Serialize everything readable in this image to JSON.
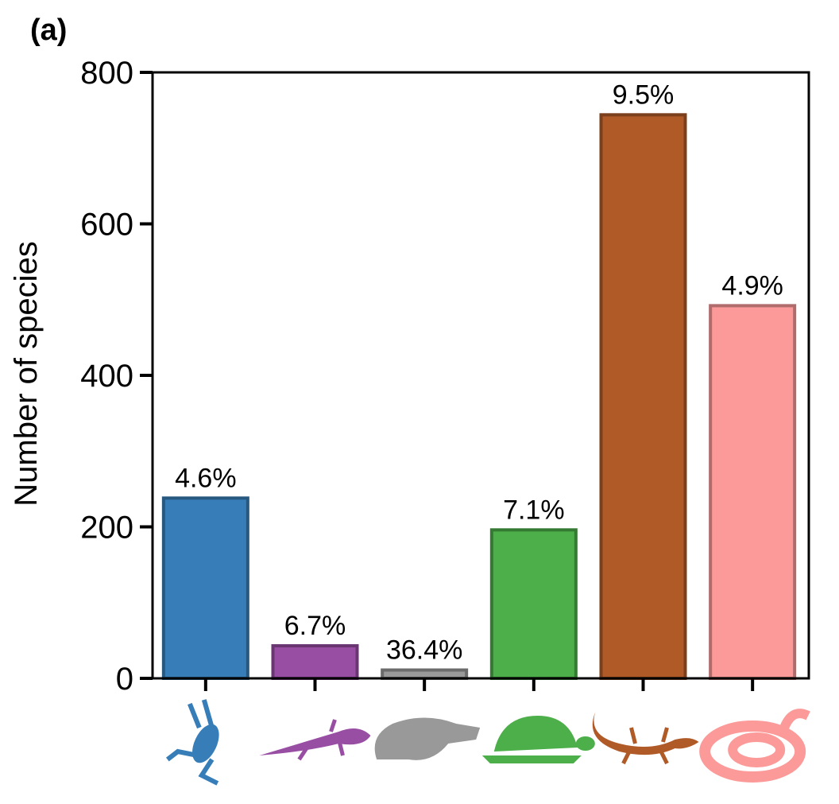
{
  "panel_label": "(a)",
  "chart_data": {
    "type": "bar",
    "ylabel": "Number of species",
    "xlabel": "",
    "ylim": [
      0,
      800
    ],
    "yticks": [
      0,
      200,
      400,
      600,
      800
    ],
    "grid": false,
    "categories": [
      "frog",
      "salamander",
      "crocodile",
      "turtle",
      "lizard",
      "snake"
    ],
    "category_icons": [
      "frog-icon",
      "salamander-icon",
      "crocodile-icon",
      "turtle-icon",
      "lizard-icon",
      "snake-icon"
    ],
    "values": [
      238,
      43,
      11,
      196,
      744,
      492
    ],
    "data_labels": [
      "4.6%",
      "6.7%",
      "36.4%",
      "7.1%",
      "9.5%",
      "4.9%"
    ],
    "colors": [
      "#377eb8",
      "#984ea3",
      "#999999",
      "#4daf4a",
      "#b05a28",
      "#fb9a99"
    ],
    "edge_colors": [
      "#265880",
      "#6a3672",
      "#6b6b6b",
      "#357a33",
      "#7b3f1c",
      "#b06b6b"
    ]
  }
}
